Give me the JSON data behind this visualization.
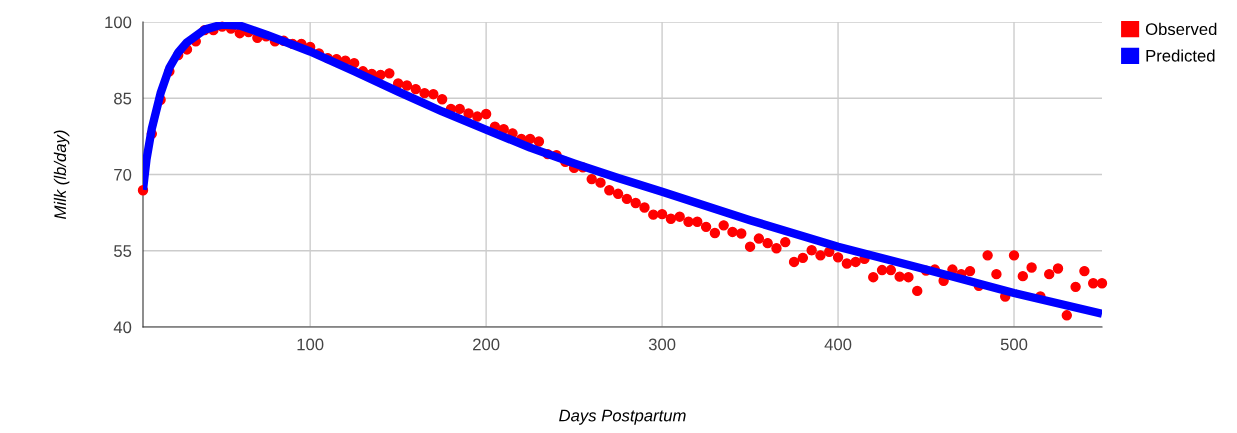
{
  "chart_data": {
    "type": "scatter",
    "xlabel": "Days Postpartum",
    "ylabel": "Milk (lb/day)",
    "xlim": [
      5,
      550
    ],
    "xticks": [
      100,
      200,
      300,
      400,
      500
    ],
    "ylim": [
      40,
      100
    ],
    "yticks": [
      40,
      55,
      70,
      85,
      100
    ],
    "grid": true,
    "legend": "top right",
    "series": [
      {
        "name": "Observed",
        "color": "#ff0000",
        "marker": "circle",
        "x": [
          5,
          10,
          15,
          20,
          25,
          30,
          35,
          40,
          45,
          50,
          55,
          60,
          65,
          70,
          75,
          80,
          85,
          90,
          95,
          100,
          105,
          110,
          115,
          120,
          125,
          130,
          135,
          140,
          145,
          150,
          155,
          160,
          165,
          170,
          175,
          180,
          185,
          190,
          195,
          200,
          205,
          210,
          215,
          220,
          225,
          230,
          235,
          240,
          245,
          250,
          255,
          260,
          265,
          270,
          275,
          280,
          285,
          290,
          295,
          300,
          305,
          310,
          315,
          320,
          325,
          330,
          335,
          340,
          345,
          350,
          355,
          360,
          365,
          370,
          375,
          380,
          385,
          390,
          395,
          400,
          405,
          410,
          415,
          420,
          425,
          430,
          435,
          440,
          445,
          450,
          455,
          460,
          465,
          470,
          475,
          480,
          485,
          490,
          495,
          500,
          505,
          510,
          515,
          520,
          525,
          530,
          535,
          540,
          545,
          550
        ],
        "values": [
          66.9,
          78.0,
          84.7,
          90.3,
          93.5,
          94.6,
          96.2,
          98.4,
          98.4,
          99.1,
          98.7,
          97.8,
          98.0,
          96.9,
          97.2,
          96.2,
          96.3,
          95.7,
          95.7,
          95.1,
          93.8,
          92.9,
          92.7,
          92.4,
          91.9,
          90.3,
          89.8,
          89.6,
          89.9,
          87.9,
          87.5,
          86.8,
          86.0,
          85.8,
          84.8,
          82.9,
          82.9,
          82.0,
          81.4,
          81.9,
          79.4,
          78.9,
          78.1,
          77.0,
          77.0,
          76.5,
          74.0,
          73.8,
          72.5,
          71.3,
          71.4,
          69.1,
          68.4,
          66.9,
          66.2,
          65.2,
          64.4,
          63.5,
          62.1,
          62.2,
          61.3,
          61.7,
          60.7,
          60.7,
          59.7,
          58.5,
          60.0,
          58.7,
          58.4,
          55.8,
          57.4,
          56.5,
          55.5,
          56.7,
          52.8,
          53.6,
          55.1,
          54.1,
          54.8,
          53.7,
          52.5,
          52.8,
          53.4,
          49.8,
          51.2,
          51.2,
          49.9,
          49.8,
          47.1,
          51.1,
          51.3,
          49.1,
          51.3,
          50.4,
          51.0,
          48.1,
          54.1,
          50.4,
          46.0,
          54.1,
          50.0,
          51.7,
          46.0,
          50.4,
          51.5,
          42.3,
          47.9,
          51.0,
          48.6,
          48.6
        ]
      },
      {
        "name": "Predicted",
        "color": "#0000ff",
        "type": "line",
        "marker": "none",
        "line_style": "solid",
        "x": [
          5,
          7,
          10,
          15,
          20,
          25,
          30,
          40,
          50,
          60,
          75,
          100,
          125,
          150,
          175,
          200,
          225,
          250,
          275,
          300,
          350,
          400,
          450,
          500,
          550
        ],
        "values": [
          67,
          73,
          79,
          86,
          91,
          94,
          96,
          98.5,
          99.5,
          99.3,
          97.5,
          94.2,
          90.3,
          86.3,
          82.4,
          78.8,
          75.3,
          72.2,
          69.3,
          66.6,
          61.0,
          55.8,
          51.3,
          46.7,
          42.6
        ]
      }
    ]
  }
}
